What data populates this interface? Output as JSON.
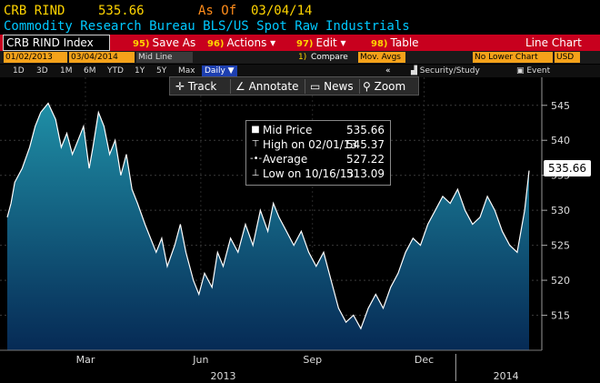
{
  "header": {
    "ticker": "CRB RIND",
    "price": "535.66",
    "as_of_label": "As Of",
    "as_of_date": "03/04/14",
    "description": "Commodity Research Bureau BLS/US Spot Raw Industrials"
  },
  "toolbar": {
    "security": "CRB RIND Index",
    "items": [
      {
        "num": "95)",
        "label": "Save As"
      },
      {
        "num": "96)",
        "label": "Actions ▾"
      },
      {
        "num": "97)",
        "label": "Edit ▾"
      },
      {
        "num": "98)",
        "label": "Table"
      }
    ],
    "chart_type": "Line Chart"
  },
  "controls": {
    "start_date": "01/02/2013",
    "end_date": "03/04/2014",
    "mid_line": "Mid Line",
    "compare_num": "1)",
    "compare": "Compare",
    "mov_avgs": "Mov. Avgs",
    "lower_chart": "No Lower Chart",
    "currency": "USD"
  },
  "ranges": {
    "items": [
      "1D",
      "3D",
      "1M",
      "6M",
      "YTD",
      "1Y",
      "5Y",
      "Max"
    ],
    "frequency": "Daily ▼",
    "collapse": "«",
    "security_study": "Security/Study",
    "event": "Event"
  },
  "tools": {
    "track": "Track",
    "annotate": "Annotate",
    "news": "News",
    "zoom": "Zoom"
  },
  "legend": {
    "rows": [
      {
        "label": "Mid Price",
        "value": "535.66"
      },
      {
        "label": "High on 02/01/13",
        "value": "545.37"
      },
      {
        "label": "Average",
        "value": "527.22"
      },
      {
        "label": "Low on 10/16/13",
        "value": "513.09"
      }
    ]
  },
  "price_tag": "535.66",
  "colors": {
    "bar_red": "#c8001e",
    "ticker_yellow": "#ffd400",
    "as_of_orange": "#ff8c1a",
    "desc_cyan": "#00c8ff",
    "area_top": "#1f8fa6",
    "area_bottom": "#062a55"
  },
  "chart_data": {
    "type": "area",
    "series": [
      {
        "name": "Mid Price",
        "x": [
          0,
          0.1,
          0.2,
          0.4,
          0.6,
          0.75,
          0.9,
          1.1,
          1.3,
          1.45,
          1.6,
          1.75,
          1.9,
          2.05,
          2.2,
          2.3,
          2.45,
          2.6,
          2.75,
          2.9,
          3.05,
          3.2,
          3.35,
          3.5,
          3.7,
          3.85,
          4.0,
          4.15,
          4.3,
          4.5,
          4.65,
          4.8,
          5.0,
          5.15,
          5.3,
          5.5,
          5.65,
          5.8,
          6.0,
          6.2,
          6.4,
          6.6,
          6.8,
          7.0,
          7.15,
          7.3,
          7.5,
          7.7,
          7.9,
          8.1,
          8.3,
          8.5,
          8.7,
          8.9,
          9.1,
          9.3,
          9.5,
          9.7,
          9.9,
          10.1,
          10.3,
          10.5,
          10.7,
          10.9,
          11.1,
          11.3,
          11.5,
          11.7,
          11.9,
          12.1,
          12.3,
          12.5,
          12.7,
          12.9,
          13.1,
          13.3,
          13.5,
          13.7,
          13.9,
          14.02
        ],
        "y": [
          529,
          531,
          534,
          536,
          539,
          542,
          544,
          545.3,
          543,
          539,
          541,
          538,
          540,
          542,
          536,
          539,
          544,
          542,
          538,
          540,
          535,
          538,
          533,
          531,
          528,
          526,
          524,
          526,
          522,
          525,
          528,
          524,
          520,
          518,
          521,
          519,
          524,
          522,
          526,
          524,
          528,
          525,
          530,
          527,
          531,
          529,
          527,
          525,
          527,
          524,
          522,
          524,
          520,
          516,
          514,
          515,
          513.1,
          516,
          518,
          516,
          519,
          521,
          524,
          526,
          525,
          528,
          530,
          532,
          531,
          533,
          530,
          528,
          529,
          532,
          530,
          527,
          525,
          524,
          530,
          535.66
        ]
      }
    ],
    "x_tick_labels": [
      "Mar",
      "Jun",
      "Sep",
      "Dec"
    ],
    "year_labels": [
      "2013",
      "2014"
    ],
    "y_ticks": [
      515,
      520,
      525,
      530,
      535,
      540,
      545
    ],
    "ylim": [
      510,
      549
    ]
  }
}
